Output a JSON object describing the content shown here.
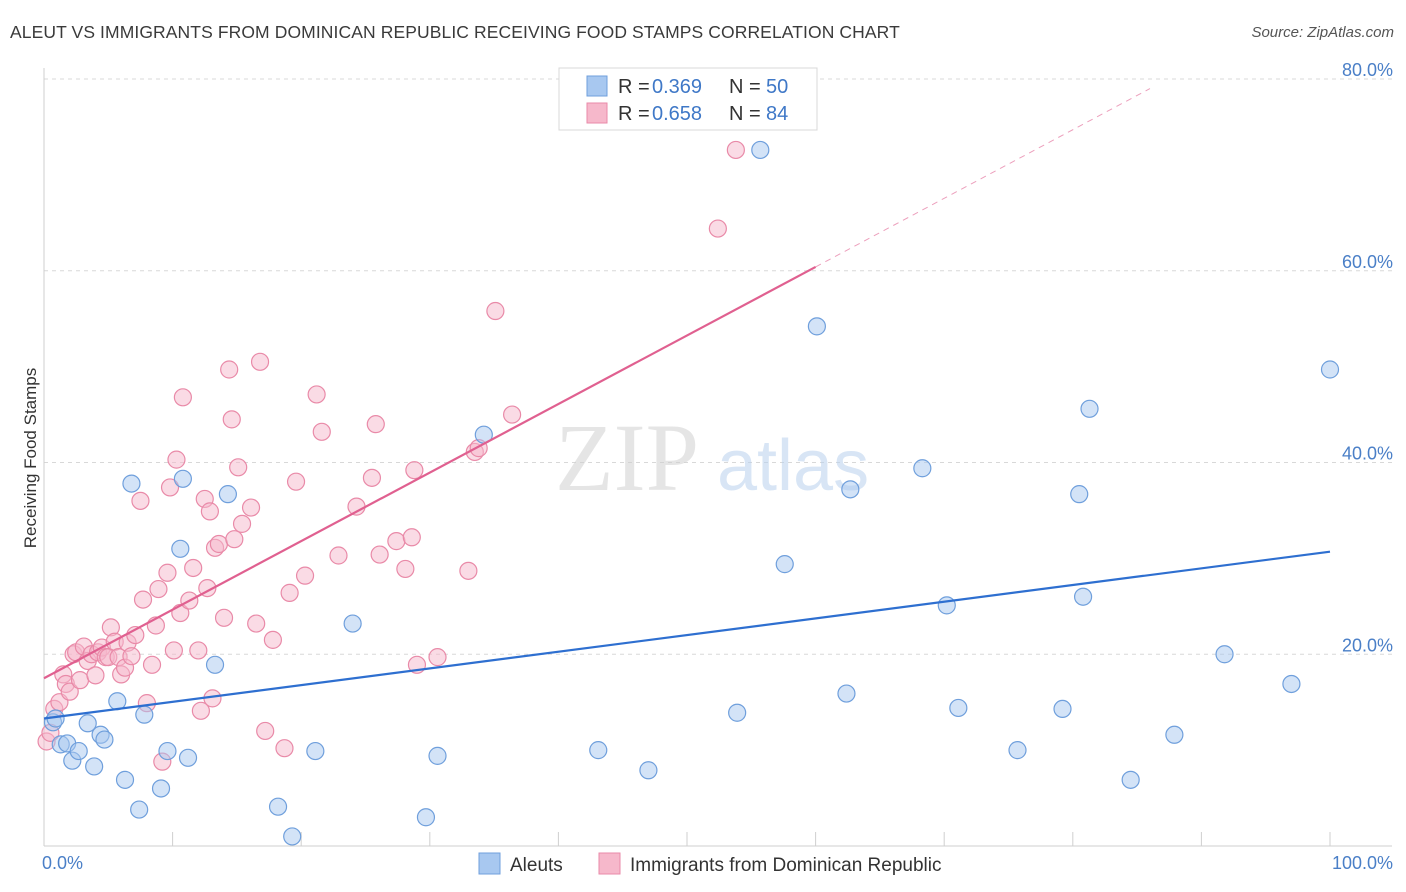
{
  "header": {
    "title": "ALEUT VS IMMIGRANTS FROM DOMINICAN REPUBLIC RECEIVING FOOD STAMPS CORRELATION CHART",
    "source": "Source: ZipAtlas.com"
  },
  "watermark": {
    "zip": "ZIP",
    "atlas": "atlas"
  },
  "colors": {
    "aleut_fill": "#a8c8f0",
    "aleut_stroke": "#6f9fdc",
    "aleut_line": "#2e6fd0",
    "dom_fill": "#f6b8cb",
    "dom_stroke": "#e98aa8",
    "dom_line": "#e06090",
    "tick": "#4a7fc7",
    "grid": "#d8d8d8"
  },
  "legend": {
    "rows": [
      {
        "r_label": "R = ",
        "r_value": "0.369",
        "n_label": "N = ",
        "n_value": "50"
      },
      {
        "r_label": "R = ",
        "r_value": "0.658",
        "n_label": "N = ",
        "n_value": "84"
      }
    ]
  },
  "chart_data": {
    "type": "scatter",
    "title": "ALEUT VS IMMIGRANTS FROM DOMINICAN REPUBLIC RECEIVING FOOD STAMPS CORRELATION CHART",
    "xlabel": "",
    "ylabel": "Receiving Food Stamps",
    "xlim": [
      0,
      100
    ],
    "ylim": [
      0,
      80
    ],
    "x_tick_labels": [
      "0.0%",
      "100.0%"
    ],
    "y_ticks": [
      20,
      40,
      60,
      80
    ],
    "y_tick_labels": [
      "20.0%",
      "40.0%",
      "60.0%",
      "80.0%"
    ],
    "grid": true,
    "legend_position": "top-center",
    "series": [
      {
        "name": "Aleuts",
        "r": 0.369,
        "n": 50,
        "trend": {
          "x": [
            0,
            100
          ],
          "y": [
            13.3,
            30.7
          ]
        },
        "points": [
          [
            0.7,
            12.9
          ],
          [
            0.9,
            13.3
          ],
          [
            1.3,
            10.6
          ],
          [
            1.8,
            10.7
          ],
          [
            2.2,
            8.9
          ],
          [
            2.7,
            9.9
          ],
          [
            3.4,
            12.8
          ],
          [
            3.9,
            8.3
          ],
          [
            4.4,
            11.6
          ],
          [
            4.7,
            11.1
          ],
          [
            5.7,
            15.1
          ],
          [
            6.3,
            6.9
          ],
          [
            6.8,
            37.8
          ],
          [
            7.4,
            3.8
          ],
          [
            7.8,
            13.7
          ],
          [
            9.1,
            6.0
          ],
          [
            9.6,
            9.9
          ],
          [
            10.6,
            31.0
          ],
          [
            10.8,
            38.3
          ],
          [
            11.2,
            9.2
          ],
          [
            13.3,
            18.9
          ],
          [
            14.3,
            36.7
          ],
          [
            18.2,
            4.1
          ],
          [
            19.3,
            1.0
          ],
          [
            21.1,
            9.9
          ],
          [
            24.0,
            23.2
          ],
          [
            29.7,
            3.0
          ],
          [
            30.6,
            9.4
          ],
          [
            34.2,
            42.9
          ],
          [
            43.1,
            10.0
          ],
          [
            47.0,
            7.9
          ],
          [
            53.9,
            13.9
          ],
          [
            55.7,
            72.6
          ],
          [
            57.6,
            29.4
          ],
          [
            60.1,
            54.2
          ],
          [
            62.4,
            15.9
          ],
          [
            62.7,
            37.2
          ],
          [
            68.3,
            39.4
          ],
          [
            70.2,
            25.1
          ],
          [
            71.1,
            14.4
          ],
          [
            75.7,
            10.0
          ],
          [
            79.2,
            14.3
          ],
          [
            80.5,
            36.7
          ],
          [
            80.8,
            26.0
          ],
          [
            81.3,
            45.6
          ],
          [
            84.5,
            6.9
          ],
          [
            87.9,
            11.6
          ],
          [
            91.8,
            20.0
          ],
          [
            97.0,
            16.9
          ],
          [
            100.0,
            49.7
          ]
        ]
      },
      {
        "name": "Immigrants from Dominican Republic",
        "r": 0.658,
        "n": 84,
        "trend": {
          "x": [
            0,
            60
          ],
          "y": [
            17.5,
            60.4
          ]
        },
        "trend_extension": {
          "x": [
            60,
            86
          ],
          "y": [
            60.4,
            79.0
          ]
        },
        "points": [
          [
            0.2,
            10.9
          ],
          [
            0.5,
            11.8
          ],
          [
            0.8,
            14.3
          ],
          [
            1.2,
            15.0
          ],
          [
            1.5,
            17.9
          ],
          [
            1.7,
            16.9
          ],
          [
            2.0,
            16.1
          ],
          [
            2.3,
            20.0
          ],
          [
            2.5,
            20.2
          ],
          [
            2.8,
            17.3
          ],
          [
            3.1,
            20.8
          ],
          [
            3.4,
            19.3
          ],
          [
            3.7,
            20.0
          ],
          [
            4.0,
            17.8
          ],
          [
            4.2,
            20.2
          ],
          [
            4.5,
            20.7
          ],
          [
            4.8,
            19.7
          ],
          [
            5.0,
            19.7
          ],
          [
            5.2,
            22.8
          ],
          [
            5.5,
            21.3
          ],
          [
            5.8,
            19.7
          ],
          [
            6.0,
            17.9
          ],
          [
            6.3,
            18.6
          ],
          [
            6.5,
            21.2
          ],
          [
            6.8,
            19.8
          ],
          [
            7.1,
            22.0
          ],
          [
            7.5,
            36.0
          ],
          [
            7.7,
            25.7
          ],
          [
            8.0,
            14.9
          ],
          [
            8.4,
            18.9
          ],
          [
            8.7,
            23.0
          ],
          [
            8.9,
            26.8
          ],
          [
            9.2,
            8.8
          ],
          [
            9.6,
            28.5
          ],
          [
            9.8,
            37.4
          ],
          [
            10.1,
            20.4
          ],
          [
            10.3,
            40.3
          ],
          [
            10.6,
            24.3
          ],
          [
            10.8,
            46.8
          ],
          [
            11.3,
            25.6
          ],
          [
            11.6,
            29.0
          ],
          [
            12.0,
            20.4
          ],
          [
            12.2,
            14.1
          ],
          [
            12.5,
            36.2
          ],
          [
            12.7,
            26.9
          ],
          [
            12.9,
            34.9
          ],
          [
            13.1,
            15.4
          ],
          [
            13.3,
            31.1
          ],
          [
            13.6,
            31.5
          ],
          [
            14.0,
            23.8
          ],
          [
            14.4,
            49.7
          ],
          [
            14.6,
            44.5
          ],
          [
            14.8,
            32.0
          ],
          [
            15.1,
            39.5
          ],
          [
            15.4,
            33.6
          ],
          [
            16.1,
            35.3
          ],
          [
            16.5,
            23.2
          ],
          [
            16.8,
            50.5
          ],
          [
            17.2,
            12.0
          ],
          [
            17.8,
            21.5
          ],
          [
            18.7,
            10.2
          ],
          [
            19.1,
            26.4
          ],
          [
            19.6,
            38.0
          ],
          [
            20.3,
            28.2
          ],
          [
            21.2,
            47.1
          ],
          [
            21.6,
            43.2
          ],
          [
            22.9,
            30.3
          ],
          [
            24.3,
            35.4
          ],
          [
            25.5,
            38.4
          ],
          [
            25.8,
            44.0
          ],
          [
            26.1,
            30.4
          ],
          [
            27.4,
            31.8
          ],
          [
            28.1,
            28.9
          ],
          [
            28.6,
            32.2
          ],
          [
            28.8,
            39.2
          ],
          [
            29.0,
            18.9
          ],
          [
            30.6,
            19.7
          ],
          [
            33.0,
            28.7
          ],
          [
            33.5,
            41.1
          ],
          [
            33.8,
            41.5
          ],
          [
            35.1,
            55.8
          ],
          [
            36.4,
            45.0
          ],
          [
            52.4,
            64.4
          ],
          [
            53.8,
            72.6
          ]
        ]
      }
    ]
  }
}
